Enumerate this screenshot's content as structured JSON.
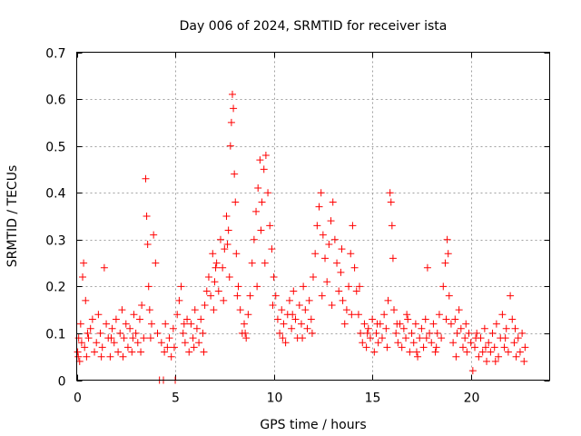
{
  "chart_data": {
    "type": "scatter",
    "title": "Day 006 of 2024, SRMTID for receiver ista",
    "xlabel": "GPS time / hours",
    "ylabel": "SRMTID / TECUs",
    "xlim": [
      0,
      24
    ],
    "ylim": [
      0,
      0.7
    ],
    "x_ticks": [
      0,
      5,
      10,
      15,
      20
    ],
    "y_ticks": [
      0,
      0.1,
      0.2,
      0.3,
      0.4,
      0.5,
      0.6,
      0.7
    ],
    "grid": true,
    "marker": "+",
    "color": "#ff0000",
    "series": [
      {
        "name": "SRMTID",
        "points": [
          [
            0.05,
            0.06
          ],
          [
            0.1,
            0.09
          ],
          [
            0.15,
            0.04
          ],
          [
            0.2,
            0.12
          ],
          [
            0.25,
            0.08
          ],
          [
            0.3,
            0.22
          ],
          [
            0.35,
            0.25
          ],
          [
            0.4,
            0.07
          ],
          [
            0.45,
            0.17
          ],
          [
            0.5,
            0.05
          ],
          [
            0.6,
            0.09
          ],
          [
            0.7,
            0.11
          ],
          [
            0.8,
            0.13
          ],
          [
            0.9,
            0.06
          ],
          [
            1.0,
            0.08
          ],
          [
            1.1,
            0.14
          ],
          [
            1.2,
            0.1
          ],
          [
            1.3,
            0.07
          ],
          [
            1.4,
            0.24
          ],
          [
            1.5,
            0.12
          ],
          [
            1.6,
            0.09
          ],
          [
            1.7,
            0.05
          ],
          [
            1.8,
            0.11
          ],
          [
            1.9,
            0.08
          ],
          [
            2.0,
            0.13
          ],
          [
            2.1,
            0.06
          ],
          [
            2.2,
            0.1
          ],
          [
            2.3,
            0.15
          ],
          [
            2.4,
            0.09
          ],
          [
            2.5,
            0.12
          ],
          [
            2.6,
            0.07
          ],
          [
            2.7,
            0.11
          ],
          [
            2.8,
            0.06
          ],
          [
            2.9,
            0.14
          ],
          [
            3.0,
            0.1
          ],
          [
            3.1,
            0.08
          ],
          [
            3.2,
            0.13
          ],
          [
            3.3,
            0.16
          ],
          [
            3.4,
            0.09
          ],
          [
            3.5,
            0.43
          ],
          [
            3.55,
            0.35
          ],
          [
            3.6,
            0.29
          ],
          [
            3.65,
            0.2
          ],
          [
            3.7,
            0.15
          ],
          [
            3.8,
            0.12
          ],
          [
            3.9,
            0.31
          ],
          [
            4.0,
            0.25
          ],
          [
            4.1,
            0.1
          ],
          [
            4.2,
            0.0
          ],
          [
            4.3,
            0.08
          ],
          [
            4.4,
            0.0
          ],
          [
            4.5,
            0.12
          ],
          [
            4.6,
            0.07
          ],
          [
            4.7,
            0.09
          ],
          [
            4.8,
            0.05
          ],
          [
            4.9,
            0.11
          ],
          [
            5.0,
            0.0
          ],
          [
            5.1,
            0.14
          ],
          [
            5.2,
            0.17
          ],
          [
            5.3,
            0.2
          ],
          [
            5.4,
            0.1
          ],
          [
            5.5,
            0.08
          ],
          [
            5.6,
            0.13
          ],
          [
            5.7,
            0.06
          ],
          [
            5.8,
            0.12
          ],
          [
            5.9,
            0.09
          ],
          [
            6.0,
            0.15
          ],
          [
            6.1,
            0.11
          ],
          [
            6.2,
            0.08
          ],
          [
            6.3,
            0.13
          ],
          [
            6.4,
            0.1
          ],
          [
            6.5,
            0.16
          ],
          [
            6.6,
            0.19
          ],
          [
            6.7,
            0.22
          ],
          [
            6.8,
            0.18
          ],
          [
            6.9,
            0.27
          ],
          [
            7.0,
            0.21
          ],
          [
            7.1,
            0.25
          ],
          [
            7.2,
            0.19
          ],
          [
            7.3,
            0.3
          ],
          [
            7.4,
            0.24
          ],
          [
            7.5,
            0.28
          ],
          [
            7.6,
            0.35
          ],
          [
            7.7,
            0.32
          ],
          [
            7.8,
            0.5
          ],
          [
            7.85,
            0.55
          ],
          [
            7.9,
            0.61
          ],
          [
            7.95,
            0.58
          ],
          [
            8.0,
            0.44
          ],
          [
            8.05,
            0.38
          ],
          [
            8.1,
            0.27
          ],
          [
            8.2,
            0.2
          ],
          [
            8.3,
            0.15
          ],
          [
            8.4,
            0.1
          ],
          [
            8.5,
            0.12
          ],
          [
            8.6,
            0.09
          ],
          [
            8.7,
            0.14
          ],
          [
            8.8,
            0.18
          ],
          [
            8.9,
            0.25
          ],
          [
            9.0,
            0.3
          ],
          [
            9.1,
            0.36
          ],
          [
            9.2,
            0.41
          ],
          [
            9.3,
            0.47
          ],
          [
            9.4,
            0.38
          ],
          [
            9.5,
            0.45
          ],
          [
            9.6,
            0.48
          ],
          [
            9.7,
            0.4
          ],
          [
            9.8,
            0.33
          ],
          [
            9.9,
            0.28
          ],
          [
            10.0,
            0.22
          ],
          [
            10.1,
            0.18
          ],
          [
            10.2,
            0.13
          ],
          [
            10.3,
            0.1
          ],
          [
            10.4,
            0.15
          ],
          [
            10.5,
            0.12
          ],
          [
            10.6,
            0.08
          ],
          [
            10.7,
            0.14
          ],
          [
            10.8,
            0.17
          ],
          [
            10.9,
            0.11
          ],
          [
            11.0,
            0.19
          ],
          [
            11.1,
            0.13
          ],
          [
            11.2,
            0.09
          ],
          [
            11.3,
            0.16
          ],
          [
            11.4,
            0.12
          ],
          [
            11.5,
            0.2
          ],
          [
            11.6,
            0.15
          ],
          [
            11.7,
            0.11
          ],
          [
            11.8,
            0.17
          ],
          [
            11.9,
            0.13
          ],
          [
            12.0,
            0.22
          ],
          [
            12.1,
            0.27
          ],
          [
            12.2,
            0.33
          ],
          [
            12.3,
            0.37
          ],
          [
            12.4,
            0.4
          ],
          [
            12.5,
            0.31
          ],
          [
            12.6,
            0.26
          ],
          [
            12.7,
            0.21
          ],
          [
            12.8,
            0.29
          ],
          [
            12.9,
            0.34
          ],
          [
            13.0,
            0.38
          ],
          [
            13.1,
            0.3
          ],
          [
            13.2,
            0.25
          ],
          [
            13.3,
            0.19
          ],
          [
            13.4,
            0.23
          ],
          [
            13.5,
            0.17
          ],
          [
            13.6,
            0.12
          ],
          [
            13.7,
            0.15
          ],
          [
            13.8,
            0.2
          ],
          [
            13.9,
            0.27
          ],
          [
            14.0,
            0.33
          ],
          [
            14.1,
            0.24
          ],
          [
            14.2,
            0.19
          ],
          [
            14.3,
            0.14
          ],
          [
            14.4,
            0.1
          ],
          [
            14.5,
            0.08
          ],
          [
            14.6,
            0.12
          ],
          [
            14.7,
            0.07
          ],
          [
            14.8,
            0.11
          ],
          [
            14.9,
            0.09
          ],
          [
            15.0,
            0.13
          ],
          [
            15.1,
            0.06
          ],
          [
            15.2,
            0.1
          ],
          [
            15.3,
            0.08
          ],
          [
            15.4,
            0.12
          ],
          [
            15.5,
            0.09
          ],
          [
            15.6,
            0.14
          ],
          [
            15.7,
            0.11
          ],
          [
            15.8,
            0.17
          ],
          [
            15.9,
            0.4
          ],
          [
            15.95,
            0.38
          ],
          [
            16.0,
            0.33
          ],
          [
            16.05,
            0.26
          ],
          [
            16.1,
            0.15
          ],
          [
            16.2,
            0.1
          ],
          [
            16.3,
            0.08
          ],
          [
            16.4,
            0.12
          ],
          [
            16.5,
            0.07
          ],
          [
            16.6,
            0.11
          ],
          [
            16.7,
            0.09
          ],
          [
            16.8,
            0.13
          ],
          [
            16.9,
            0.06
          ],
          [
            17.0,
            0.1
          ],
          [
            17.1,
            0.08
          ],
          [
            17.2,
            0.12
          ],
          [
            17.3,
            0.05
          ],
          [
            17.4,
            0.09
          ],
          [
            17.5,
            0.11
          ],
          [
            17.6,
            0.07
          ],
          [
            17.7,
            0.13
          ],
          [
            17.8,
            0.24
          ],
          [
            17.9,
            0.1
          ],
          [
            18.0,
            0.08
          ],
          [
            18.1,
            0.12
          ],
          [
            18.2,
            0.06
          ],
          [
            18.3,
            0.1
          ],
          [
            18.4,
            0.14
          ],
          [
            18.5,
            0.09
          ],
          [
            18.6,
            0.2
          ],
          [
            18.7,
            0.25
          ],
          [
            18.8,
            0.3
          ],
          [
            18.85,
            0.27
          ],
          [
            18.9,
            0.18
          ],
          [
            19.0,
            0.12
          ],
          [
            19.1,
            0.08
          ],
          [
            19.2,
            0.13
          ],
          [
            19.3,
            0.1
          ],
          [
            19.4,
            0.15
          ],
          [
            19.5,
            0.11
          ],
          [
            19.6,
            0.07
          ],
          [
            19.7,
            0.09
          ],
          [
            19.8,
            0.06
          ],
          [
            19.9,
            0.1
          ],
          [
            20.0,
            0.08
          ],
          [
            20.1,
            0.02
          ],
          [
            20.2,
            0.07
          ],
          [
            20.3,
            0.1
          ],
          [
            20.4,
            0.05
          ],
          [
            20.5,
            0.09
          ],
          [
            20.6,
            0.06
          ],
          [
            20.7,
            0.11
          ],
          [
            20.8,
            0.04
          ],
          [
            20.9,
            0.08
          ],
          [
            21.0,
            0.06
          ],
          [
            21.1,
            0.1
          ],
          [
            21.2,
            0.07
          ],
          [
            21.3,
            0.12
          ],
          [
            21.4,
            0.05
          ],
          [
            21.5,
            0.09
          ],
          [
            21.6,
            0.14
          ],
          [
            21.7,
            0.07
          ],
          [
            21.8,
            0.11
          ],
          [
            21.9,
            0.06
          ],
          [
            22.0,
            0.18
          ],
          [
            22.1,
            0.13
          ],
          [
            22.2,
            0.08
          ],
          [
            22.3,
            0.05
          ],
          [
            22.4,
            0.09
          ],
          [
            22.5,
            0.06
          ],
          [
            22.6,
            0.1
          ],
          [
            22.7,
            0.04
          ],
          [
            0.08,
            0.05
          ],
          [
            0.55,
            0.1
          ],
          [
            1.25,
            0.05
          ],
          [
            1.75,
            0.09
          ],
          [
            2.35,
            0.05
          ],
          [
            2.85,
            0.09
          ],
          [
            3.25,
            0.06
          ],
          [
            3.75,
            0.09
          ],
          [
            4.45,
            0.06
          ],
          [
            4.95,
            0.07
          ],
          [
            5.45,
            0.12
          ],
          [
            5.95,
            0.07
          ],
          [
            6.45,
            0.06
          ],
          [
            6.95,
            0.15
          ],
          [
            7.45,
            0.17
          ],
          [
            7.75,
            0.22
          ],
          [
            8.15,
            0.18
          ],
          [
            8.55,
            0.1
          ],
          [
            9.15,
            0.2
          ],
          [
            9.55,
            0.25
          ],
          [
            9.95,
            0.16
          ],
          [
            10.45,
            0.09
          ],
          [
            10.95,
            0.14
          ],
          [
            11.45,
            0.09
          ],
          [
            11.95,
            0.1
          ],
          [
            12.45,
            0.18
          ],
          [
            12.95,
            0.16
          ],
          [
            13.45,
            0.28
          ],
          [
            13.95,
            0.14
          ],
          [
            14.35,
            0.2
          ],
          [
            14.75,
            0.1
          ],
          [
            15.25,
            0.12
          ],
          [
            15.75,
            0.07
          ],
          [
            16.25,
            0.12
          ],
          [
            16.75,
            0.14
          ],
          [
            17.25,
            0.06
          ],
          [
            17.75,
            0.09
          ],
          [
            18.25,
            0.07
          ],
          [
            18.75,
            0.13
          ],
          [
            19.25,
            0.05
          ],
          [
            19.75,
            0.12
          ],
          [
            20.25,
            0.09
          ],
          [
            20.75,
            0.07
          ],
          [
            21.25,
            0.04
          ],
          [
            21.75,
            0.09
          ],
          [
            22.25,
            0.11
          ],
          [
            22.75,
            0.07
          ],
          [
            7.05,
            0.24
          ],
          [
            7.65,
            0.29
          ],
          [
            9.35,
            0.32
          ]
        ]
      }
    ]
  }
}
